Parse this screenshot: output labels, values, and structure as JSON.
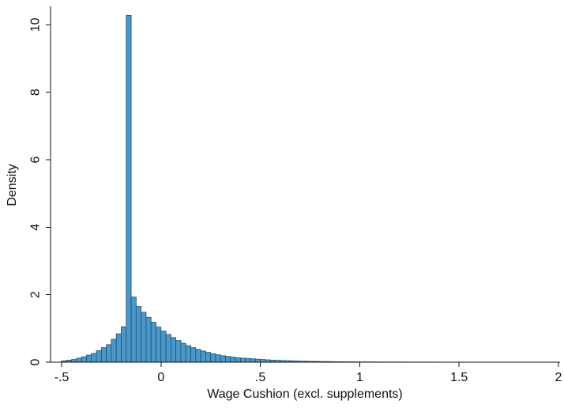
{
  "chart_data": {
    "type": "bar",
    "subtype": "histogram",
    "title": "",
    "xlabel": "Wage Cushion (excl. supplements)",
    "ylabel": "Density",
    "xlim": [
      -0.5,
      2
    ],
    "ylim": [
      0,
      10.5
    ],
    "x_ticks": [
      {
        "value": -0.5,
        "label": "-.5"
      },
      {
        "value": 0,
        "label": "0"
      },
      {
        "value": 0.5,
        "label": ".5"
      },
      {
        "value": 1,
        "label": "1"
      },
      {
        "value": 1.5,
        "label": "1.5"
      },
      {
        "value": 2,
        "label": "2"
      }
    ],
    "y_ticks": [
      {
        "value": 0,
        "label": "0"
      },
      {
        "value": 2,
        "label": "2"
      },
      {
        "value": 4,
        "label": "4"
      },
      {
        "value": 6,
        "label": "6"
      },
      {
        "value": 8,
        "label": "8"
      },
      {
        "value": 10,
        "label": "10"
      }
    ],
    "grid": false,
    "legend": "none",
    "colors": {
      "bar_fill": "#4a98c9",
      "bar_edge": "#1e4f72",
      "axis": "#111111"
    },
    "bins": {
      "start": -0.5,
      "width": 0.025,
      "density": [
        0.04,
        0.06,
        0.08,
        0.12,
        0.16,
        0.21,
        0.26,
        0.34,
        0.43,
        0.52,
        0.68,
        0.84,
        1.05,
        10.28,
        1.93,
        1.65,
        1.48,
        1.33,
        1.18,
        1.04,
        0.92,
        0.82,
        0.73,
        0.64,
        0.56,
        0.49,
        0.43,
        0.38,
        0.33,
        0.29,
        0.25,
        0.22,
        0.19,
        0.17,
        0.15,
        0.13,
        0.12,
        0.11,
        0.1,
        0.09,
        0.08,
        0.07,
        0.06,
        0.055,
        0.05,
        0.045,
        0.04,
        0.035,
        0.03,
        0.028,
        0.025,
        0.022,
        0.02,
        0.018,
        0.016,
        0.014,
        0.012,
        0.011,
        0.01,
        0.009,
        0.008,
        0.008,
        0.007,
        0.007,
        0.006,
        0.006,
        0.005,
        0.005,
        0.005,
        0.004,
        0.004,
        0.004,
        0.003,
        0.003,
        0.003,
        0.003,
        0.002,
        0.002,
        0.002,
        0.002,
        0.002,
        0.002,
        0.002,
        0.001,
        0.001,
        0.001,
        0.001,
        0.001,
        0.001,
        0.001,
        0.001,
        0.001,
        0.001,
        0.001,
        0.001,
        0.001,
        0.001,
        0.001,
        0.001,
        0.001
      ]
    }
  }
}
